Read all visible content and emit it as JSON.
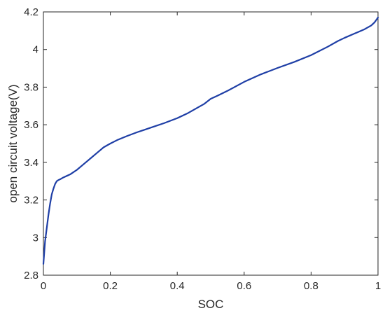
{
  "chart_data": {
    "type": "line",
    "xlabel": "SOC",
    "ylabel": "open circuit voltage(V)",
    "xlim": [
      0,
      1
    ],
    "ylim": [
      2.8,
      4.2
    ],
    "xticks": [
      0,
      0.2,
      0.4,
      0.6,
      0.8,
      1
    ],
    "xtick_labels": [
      "0",
      "0.2",
      "0.4",
      "0.6",
      "0.8",
      "1"
    ],
    "yticks": [
      2.8,
      3,
      3.2,
      3.4,
      3.6,
      3.8,
      4,
      4.2
    ],
    "ytick_labels": [
      "2.8",
      "3",
      "3.2",
      "3.4",
      "3.6",
      "3.8",
      "4",
      "4.2"
    ],
    "grid": false,
    "legend": false,
    "series": [
      {
        "color": "#1f3fa6",
        "x": [
          0.0,
          0.005,
          0.01,
          0.015,
          0.02,
          0.025,
          0.03,
          0.035,
          0.04,
          0.045,
          0.05,
          0.06,
          0.07,
          0.08,
          0.09,
          0.1,
          0.12,
          0.14,
          0.16,
          0.18,
          0.2,
          0.22,
          0.25,
          0.28,
          0.3,
          0.33,
          0.36,
          0.4,
          0.43,
          0.46,
          0.48,
          0.5,
          0.52,
          0.55,
          0.6,
          0.65,
          0.7,
          0.75,
          0.8,
          0.85,
          0.88,
          0.9,
          0.93,
          0.96,
          0.98,
          0.99,
          1.0
        ],
        "y": [
          2.86,
          2.98,
          3.05,
          3.12,
          3.18,
          3.23,
          3.26,
          3.285,
          3.3,
          3.306,
          3.31,
          3.32,
          3.328,
          3.336,
          3.348,
          3.36,
          3.39,
          3.42,
          3.45,
          3.48,
          3.5,
          3.518,
          3.54,
          3.56,
          3.572,
          3.59,
          3.608,
          3.635,
          3.66,
          3.69,
          3.71,
          3.738,
          3.754,
          3.78,
          3.828,
          3.868,
          3.902,
          3.934,
          3.97,
          4.015,
          4.045,
          4.062,
          4.085,
          4.108,
          4.128,
          4.145,
          4.17
        ]
      }
    ]
  }
}
